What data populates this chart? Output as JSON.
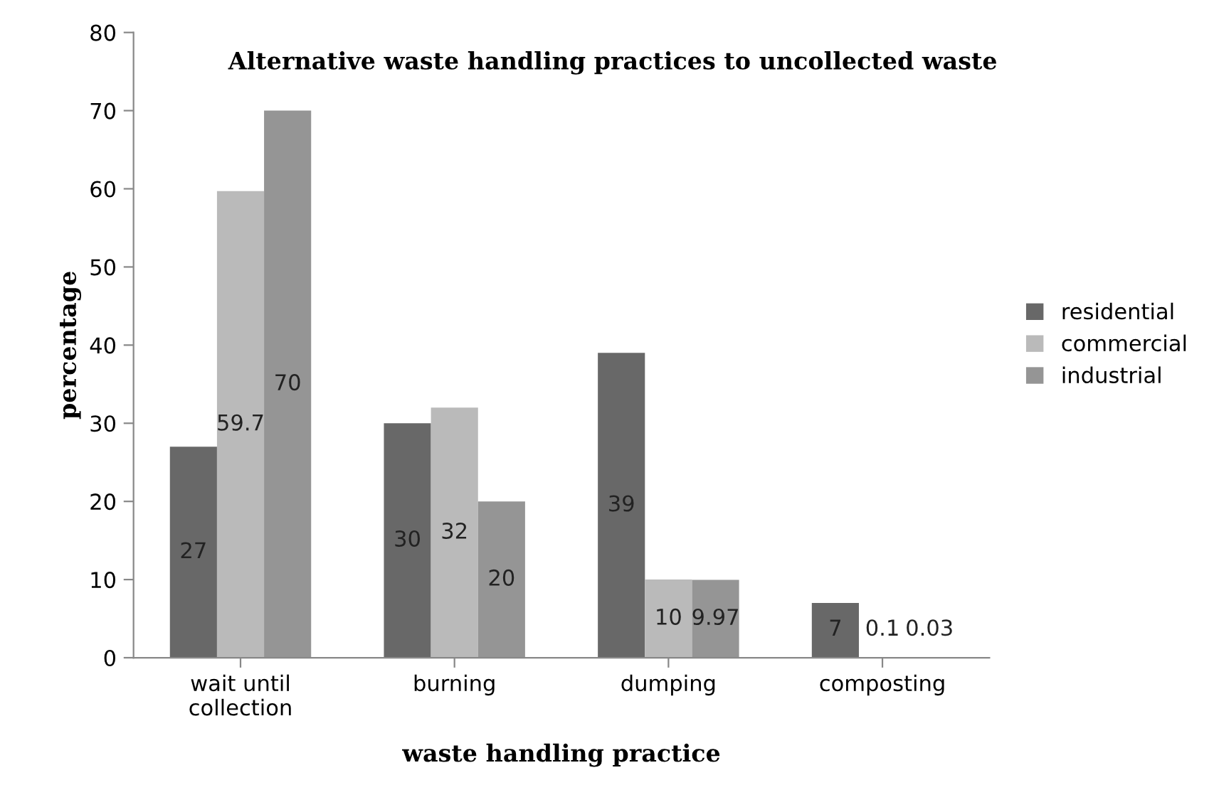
{
  "chart_data": {
    "type": "bar",
    "title": "Alternative waste handling practices to uncollected waste",
    "xlabel": "waste handling practice",
    "ylabel": "percentage",
    "categories": [
      "wait until\ncollection",
      "burning",
      "dumping",
      "composting"
    ],
    "series": [
      {
        "name": "residential",
        "color": "#686868",
        "values": [
          27,
          30,
          39,
          7
        ]
      },
      {
        "name": "commercial",
        "color": "#bababa",
        "values": [
          59.7,
          32,
          10,
          0.1
        ]
      },
      {
        "name": "industrial",
        "color": "#959595",
        "values": [
          70,
          20,
          9.97,
          0.03
        ]
      }
    ],
    "ylim": [
      0,
      80
    ],
    "yticks": [
      0,
      10,
      20,
      30,
      40,
      50,
      60,
      70,
      80
    ],
    "grid": false,
    "legend": "right",
    "data_labels": true
  }
}
